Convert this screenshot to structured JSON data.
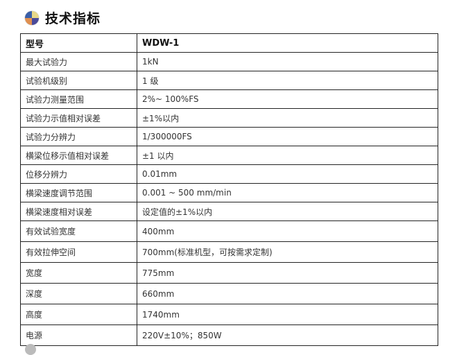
{
  "title": "技术指标",
  "icon": "four-color-ball-icon",
  "rows": [
    {
      "k": "型号",
      "v": "WDW-1"
    },
    {
      "k": "最大试验力",
      "v": "1kN"
    },
    {
      "k": "试验机级别",
      "v": "1 级"
    },
    {
      "k": "试验力测量范围",
      "v": "2%~ 100%FS"
    },
    {
      "k": "试验力示值相对误差",
      "v": "±1%以内"
    },
    {
      "k": "试验力分辨力",
      "v": "1/300000FS"
    },
    {
      "k": "横梁位移示值相对误差",
      "v": "±1 以内"
    },
    {
      "k": "位移分辨力",
      "v": "0.01mm"
    },
    {
      "k": "横梁速度调节范围",
      "v": "0.001 ~ 500 mm/min"
    },
    {
      "k": "横梁速度相对误差",
      "v": "设定值的±1%以内"
    },
    {
      "k": "有效试验宽度",
      "v": "400mm"
    },
    {
      "k": "有效拉伸空间",
      "v": "700mm(标准机型，可按需求定制)"
    },
    {
      "k": "宽度",
      "v": "775mm"
    },
    {
      "k": "深度",
      "v": "660mm"
    },
    {
      "k": "高度",
      "v": "1740mm"
    },
    {
      "k": "电源",
      "v": "220V±10%；850W"
    }
  ]
}
